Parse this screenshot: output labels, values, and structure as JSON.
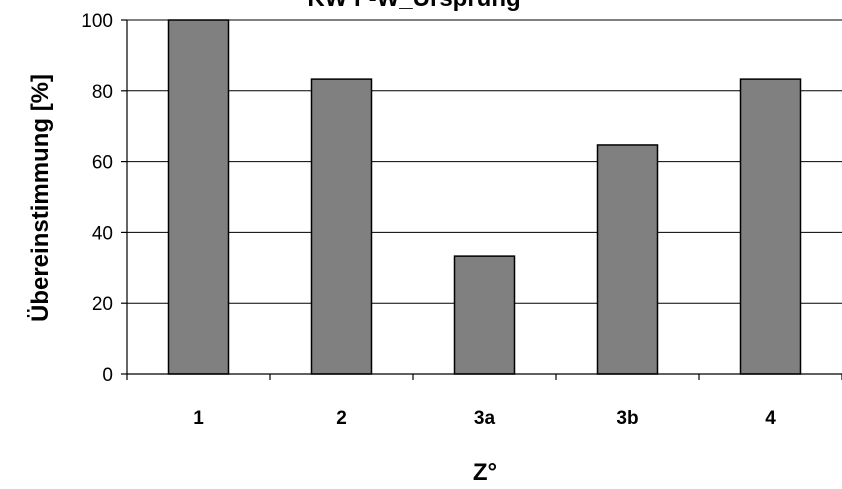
{
  "chart_data": {
    "type": "bar",
    "title": "KW F-W_Ursprung",
    "xlabel": "Z°",
    "ylabel": "Übereinstimmung [%]",
    "categories": [
      "1",
      "2",
      "3a",
      "3b",
      "4"
    ],
    "values": [
      100,
      83.3,
      33.3,
      64.7,
      83.3
    ],
    "ylim": [
      0,
      100
    ],
    "yticks": [
      "0",
      "20",
      "40",
      "60",
      "80",
      "100"
    ],
    "grid": true,
    "legend": "none",
    "colors": {
      "bar_fill": "#808080",
      "bar_stroke": "#000000",
      "grid": "#000000",
      "background": "#ffffff"
    }
  }
}
